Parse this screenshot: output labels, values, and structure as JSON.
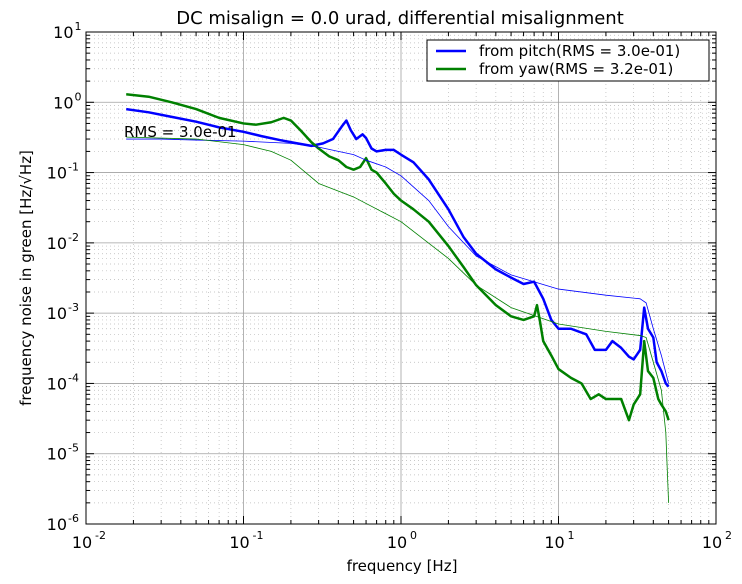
{
  "chart_data": {
    "type": "line",
    "title": "DC misalign = 0.0 urad, differential misalignment",
    "xlabel": "frequency [Hz]",
    "ylabel": "frequency noise in green [Hz/√Hz]",
    "xscale": "log",
    "yscale": "log",
    "xlim": [
      0.01,
      100
    ],
    "ylim": [
      1e-06,
      10
    ],
    "grid": true,
    "legend_position": "top-right",
    "x_ticks": [
      {
        "base": "10",
        "exp": "-2",
        "value": 0.01
      },
      {
        "base": "10",
        "exp": "-1",
        "value": 0.1
      },
      {
        "base": "10",
        "exp": "0",
        "value": 1
      },
      {
        "base": "10",
        "exp": "1",
        "value": 10
      },
      {
        "base": "10",
        "exp": "2",
        "value": 100
      }
    ],
    "y_ticks": [
      {
        "base": "10",
        "exp": "-6",
        "value": 1e-06
      },
      {
        "base": "10",
        "exp": "-5",
        "value": 1e-05
      },
      {
        "base": "10",
        "exp": "-4",
        "value": 0.0001
      },
      {
        "base": "10",
        "exp": "-3",
        "value": 0.001
      },
      {
        "base": "10",
        "exp": "-2",
        "value": 0.01
      },
      {
        "base": "10",
        "exp": "-1",
        "value": 0.1
      },
      {
        "base": "10",
        "exp": "0",
        "value": 1
      },
      {
        "base": "10",
        "exp": "1",
        "value": 10
      }
    ],
    "annotation": "RMS = 3.0e-01",
    "series": [
      {
        "name": "from pitch(RMS = 3.0e-01)",
        "color": "#0000ff",
        "width": 2.5,
        "legend": true,
        "points": [
          [
            0.018,
            0.8
          ],
          [
            0.025,
            0.72
          ],
          [
            0.035,
            0.62
          ],
          [
            0.05,
            0.53
          ],
          [
            0.07,
            0.44
          ],
          [
            0.1,
            0.38
          ],
          [
            0.13,
            0.33
          ],
          [
            0.17,
            0.29
          ],
          [
            0.22,
            0.26
          ],
          [
            0.27,
            0.24
          ],
          [
            0.32,
            0.26
          ],
          [
            0.37,
            0.3
          ],
          [
            0.42,
            0.45
          ],
          [
            0.45,
            0.55
          ],
          [
            0.48,
            0.4
          ],
          [
            0.52,
            0.3
          ],
          [
            0.57,
            0.35
          ],
          [
            0.6,
            0.31
          ],
          [
            0.65,
            0.22
          ],
          [
            0.7,
            0.2
          ],
          [
            0.8,
            0.21
          ],
          [
            0.9,
            0.21
          ],
          [
            1.0,
            0.18
          ],
          [
            1.2,
            0.14
          ],
          [
            1.5,
            0.08
          ],
          [
            2.0,
            0.03
          ],
          [
            2.5,
            0.012
          ],
          [
            3.0,
            0.007
          ],
          [
            4.0,
            0.0042
          ],
          [
            5.0,
            0.0032
          ],
          [
            6.0,
            0.0026
          ],
          [
            7.0,
            0.0028
          ],
          [
            7.5,
            0.0021
          ],
          [
            8.0,
            0.0016
          ],
          [
            9.0,
            0.0008
          ],
          [
            10.0,
            0.0006
          ],
          [
            12.0,
            0.0006
          ],
          [
            15.0,
            0.0005
          ],
          [
            17.0,
            0.0003
          ],
          [
            20.0,
            0.0003
          ],
          [
            22.0,
            0.0004
          ],
          [
            25.0,
            0.00032
          ],
          [
            28.0,
            0.00024
          ],
          [
            30.0,
            0.00022
          ],
          [
            33.0,
            0.0003
          ],
          [
            35.0,
            0.0012
          ],
          [
            37.0,
            0.0006
          ],
          [
            40.0,
            0.00045
          ],
          [
            42.0,
            0.0002
          ],
          [
            45.0,
            0.00015
          ],
          [
            48.0,
            0.0001
          ],
          [
            50.0,
            9e-05
          ]
        ]
      },
      {
        "name": "from yaw(RMS = 3.2e-01)",
        "color": "#008000",
        "width": 2.5,
        "legend": true,
        "points": [
          [
            0.018,
            1.3
          ],
          [
            0.025,
            1.2
          ],
          [
            0.035,
            1.0
          ],
          [
            0.05,
            0.8
          ],
          [
            0.07,
            0.6
          ],
          [
            0.1,
            0.5
          ],
          [
            0.12,
            0.48
          ],
          [
            0.15,
            0.52
          ],
          [
            0.18,
            0.6
          ],
          [
            0.2,
            0.55
          ],
          [
            0.23,
            0.4
          ],
          [
            0.27,
            0.27
          ],
          [
            0.3,
            0.22
          ],
          [
            0.35,
            0.17
          ],
          [
            0.4,
            0.15
          ],
          [
            0.45,
            0.12
          ],
          [
            0.5,
            0.11
          ],
          [
            0.55,
            0.12
          ],
          [
            0.6,
            0.16
          ],
          [
            0.65,
            0.11
          ],
          [
            0.7,
            0.1
          ],
          [
            0.8,
            0.07
          ],
          [
            0.9,
            0.05
          ],
          [
            1.0,
            0.04
          ],
          [
            1.2,
            0.03
          ],
          [
            1.5,
            0.02
          ],
          [
            2.0,
            0.009
          ],
          [
            2.5,
            0.0045
          ],
          [
            3.0,
            0.0025
          ],
          [
            4.0,
            0.0013
          ],
          [
            5.0,
            0.0009
          ],
          [
            6.0,
            0.0008
          ],
          [
            7.0,
            0.0009
          ],
          [
            7.3,
            0.0013
          ],
          [
            7.6,
            0.0008
          ],
          [
            8.0,
            0.0004
          ],
          [
            9.0,
            0.00025
          ],
          [
            10.0,
            0.00016
          ],
          [
            12.0,
            0.00012
          ],
          [
            14.0,
            0.0001
          ],
          [
            16.0,
            6e-05
          ],
          [
            18.0,
            7e-05
          ],
          [
            20.0,
            6e-05
          ],
          [
            25.0,
            6e-05
          ],
          [
            28.0,
            3e-05
          ],
          [
            30.0,
            5e-05
          ],
          [
            33.0,
            7e-05
          ],
          [
            35.0,
            0.0004
          ],
          [
            37.0,
            0.00015
          ],
          [
            40.0,
            0.00012
          ],
          [
            43.0,
            6e-05
          ],
          [
            45.0,
            5e-05
          ],
          [
            48.0,
            4e-05
          ],
          [
            50.0,
            3e-05
          ]
        ]
      },
      {
        "name": "pitch cumulative RMS",
        "color": "#0000ff",
        "width": 0.8,
        "legend": false,
        "points": [
          [
            0.018,
            0.3
          ],
          [
            0.03,
            0.3
          ],
          [
            0.05,
            0.29
          ],
          [
            0.1,
            0.28
          ],
          [
            0.2,
            0.26
          ],
          [
            0.3,
            0.23
          ],
          [
            0.4,
            0.2
          ],
          [
            0.5,
            0.18
          ],
          [
            0.6,
            0.15
          ],
          [
            0.8,
            0.12
          ],
          [
            1.0,
            0.09
          ],
          [
            1.5,
            0.04
          ],
          [
            2.0,
            0.017
          ],
          [
            3.0,
            0.0065
          ],
          [
            5.0,
            0.0035
          ],
          [
            10.0,
            0.0022
          ],
          [
            20.0,
            0.0018
          ],
          [
            33.0,
            0.0016
          ],
          [
            36.0,
            0.0014
          ],
          [
            40.0,
            0.0006
          ],
          [
            45.0,
            0.00025
          ],
          [
            50.0,
            0.0001
          ]
        ]
      },
      {
        "name": "yaw cumulative RMS",
        "color": "#008000",
        "width": 0.8,
        "legend": false,
        "points": [
          [
            0.018,
            0.32
          ],
          [
            0.05,
            0.3
          ],
          [
            0.1,
            0.25
          ],
          [
            0.15,
            0.2
          ],
          [
            0.2,
            0.15
          ],
          [
            0.3,
            0.07
          ],
          [
            0.5,
            0.045
          ],
          [
            1.0,
            0.02
          ],
          [
            2.0,
            0.006
          ],
          [
            3.0,
            0.0025
          ],
          [
            5.0,
            0.0012
          ],
          [
            10.0,
            0.0007
          ],
          [
            20.0,
            0.00055
          ],
          [
            33.0,
            0.00048
          ],
          [
            36.0,
            0.00045
          ],
          [
            40.0,
            0.0002
          ],
          [
            45.0,
            8e-05
          ],
          [
            48.0,
            2e-05
          ],
          [
            50.0,
            2e-06
          ]
        ]
      }
    ]
  }
}
